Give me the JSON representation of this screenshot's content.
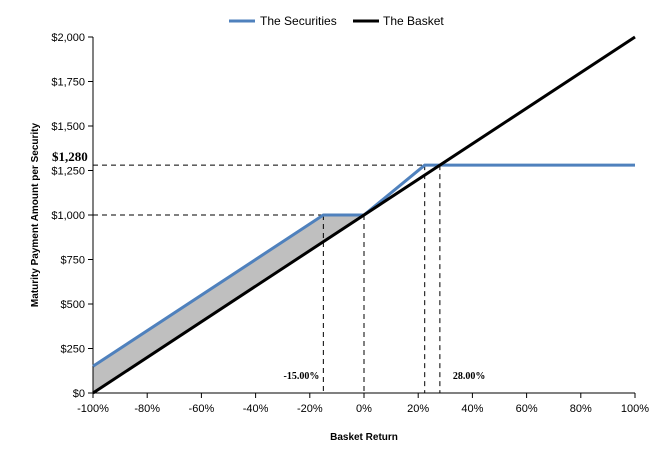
{
  "chart_data": {
    "type": "line",
    "xlabel": "Basket Return",
    "ylabel": "Maturity Payment Amount per Security",
    "xlim": [
      -100,
      100
    ],
    "ylim": [
      0,
      2000
    ],
    "x_ticks": [
      "-100%",
      "-80%",
      "-60%",
      "-40%",
      "-20%",
      "0%",
      "20%",
      "40%",
      "60%",
      "80%",
      "100%"
    ],
    "x_tick_values": [
      -100,
      -80,
      -60,
      -40,
      -20,
      0,
      20,
      40,
      60,
      80,
      100
    ],
    "y_ticks": [
      "$0",
      "$250",
      "$500",
      "$750",
      "$1,000",
      "$1,250",
      "$1,500",
      "$1,750",
      "$2,000"
    ],
    "y_tick_values": [
      0,
      250,
      500,
      750,
      1000,
      1250,
      1500,
      1750,
      2000
    ],
    "legend_position": "top-center",
    "series": [
      {
        "name": "The Securities",
        "color": "#4f81bd",
        "x": [
          -100,
          -15,
          0,
          22.4,
          28,
          100
        ],
        "y": [
          150,
          1000,
          1000,
          1280,
          1280,
          1280
        ]
      },
      {
        "name": "The Basket",
        "color": "#000000",
        "x": [
          -100,
          100
        ],
        "y": [
          0,
          2000
        ]
      }
    ],
    "shaded_region": {
      "color": "#bfbfbf",
      "between": "The Securities above The Basket",
      "x_range": [
        -100,
        0
      ]
    },
    "reference_lines": [
      {
        "type": "horizontal",
        "y": 1000,
        "x_to": -15
      },
      {
        "type": "horizontal",
        "y": 1280,
        "x_to": 28
      },
      {
        "type": "vertical",
        "x": -15,
        "y_to": 1000
      },
      {
        "type": "vertical",
        "x": 0,
        "y_to": 1000
      },
      {
        "type": "vertical",
        "x": 22.4,
        "y_to": 1280
      },
      {
        "type": "vertical",
        "x": 28,
        "y_to": 1280
      }
    ],
    "annotations": [
      {
        "text": "$1,280",
        "x": -100,
        "y": 1280
      },
      {
        "text": "-15.00%",
        "x": -15,
        "y": 0
      },
      {
        "text": "28.00%",
        "x": 28,
        "y": 0
      }
    ]
  }
}
